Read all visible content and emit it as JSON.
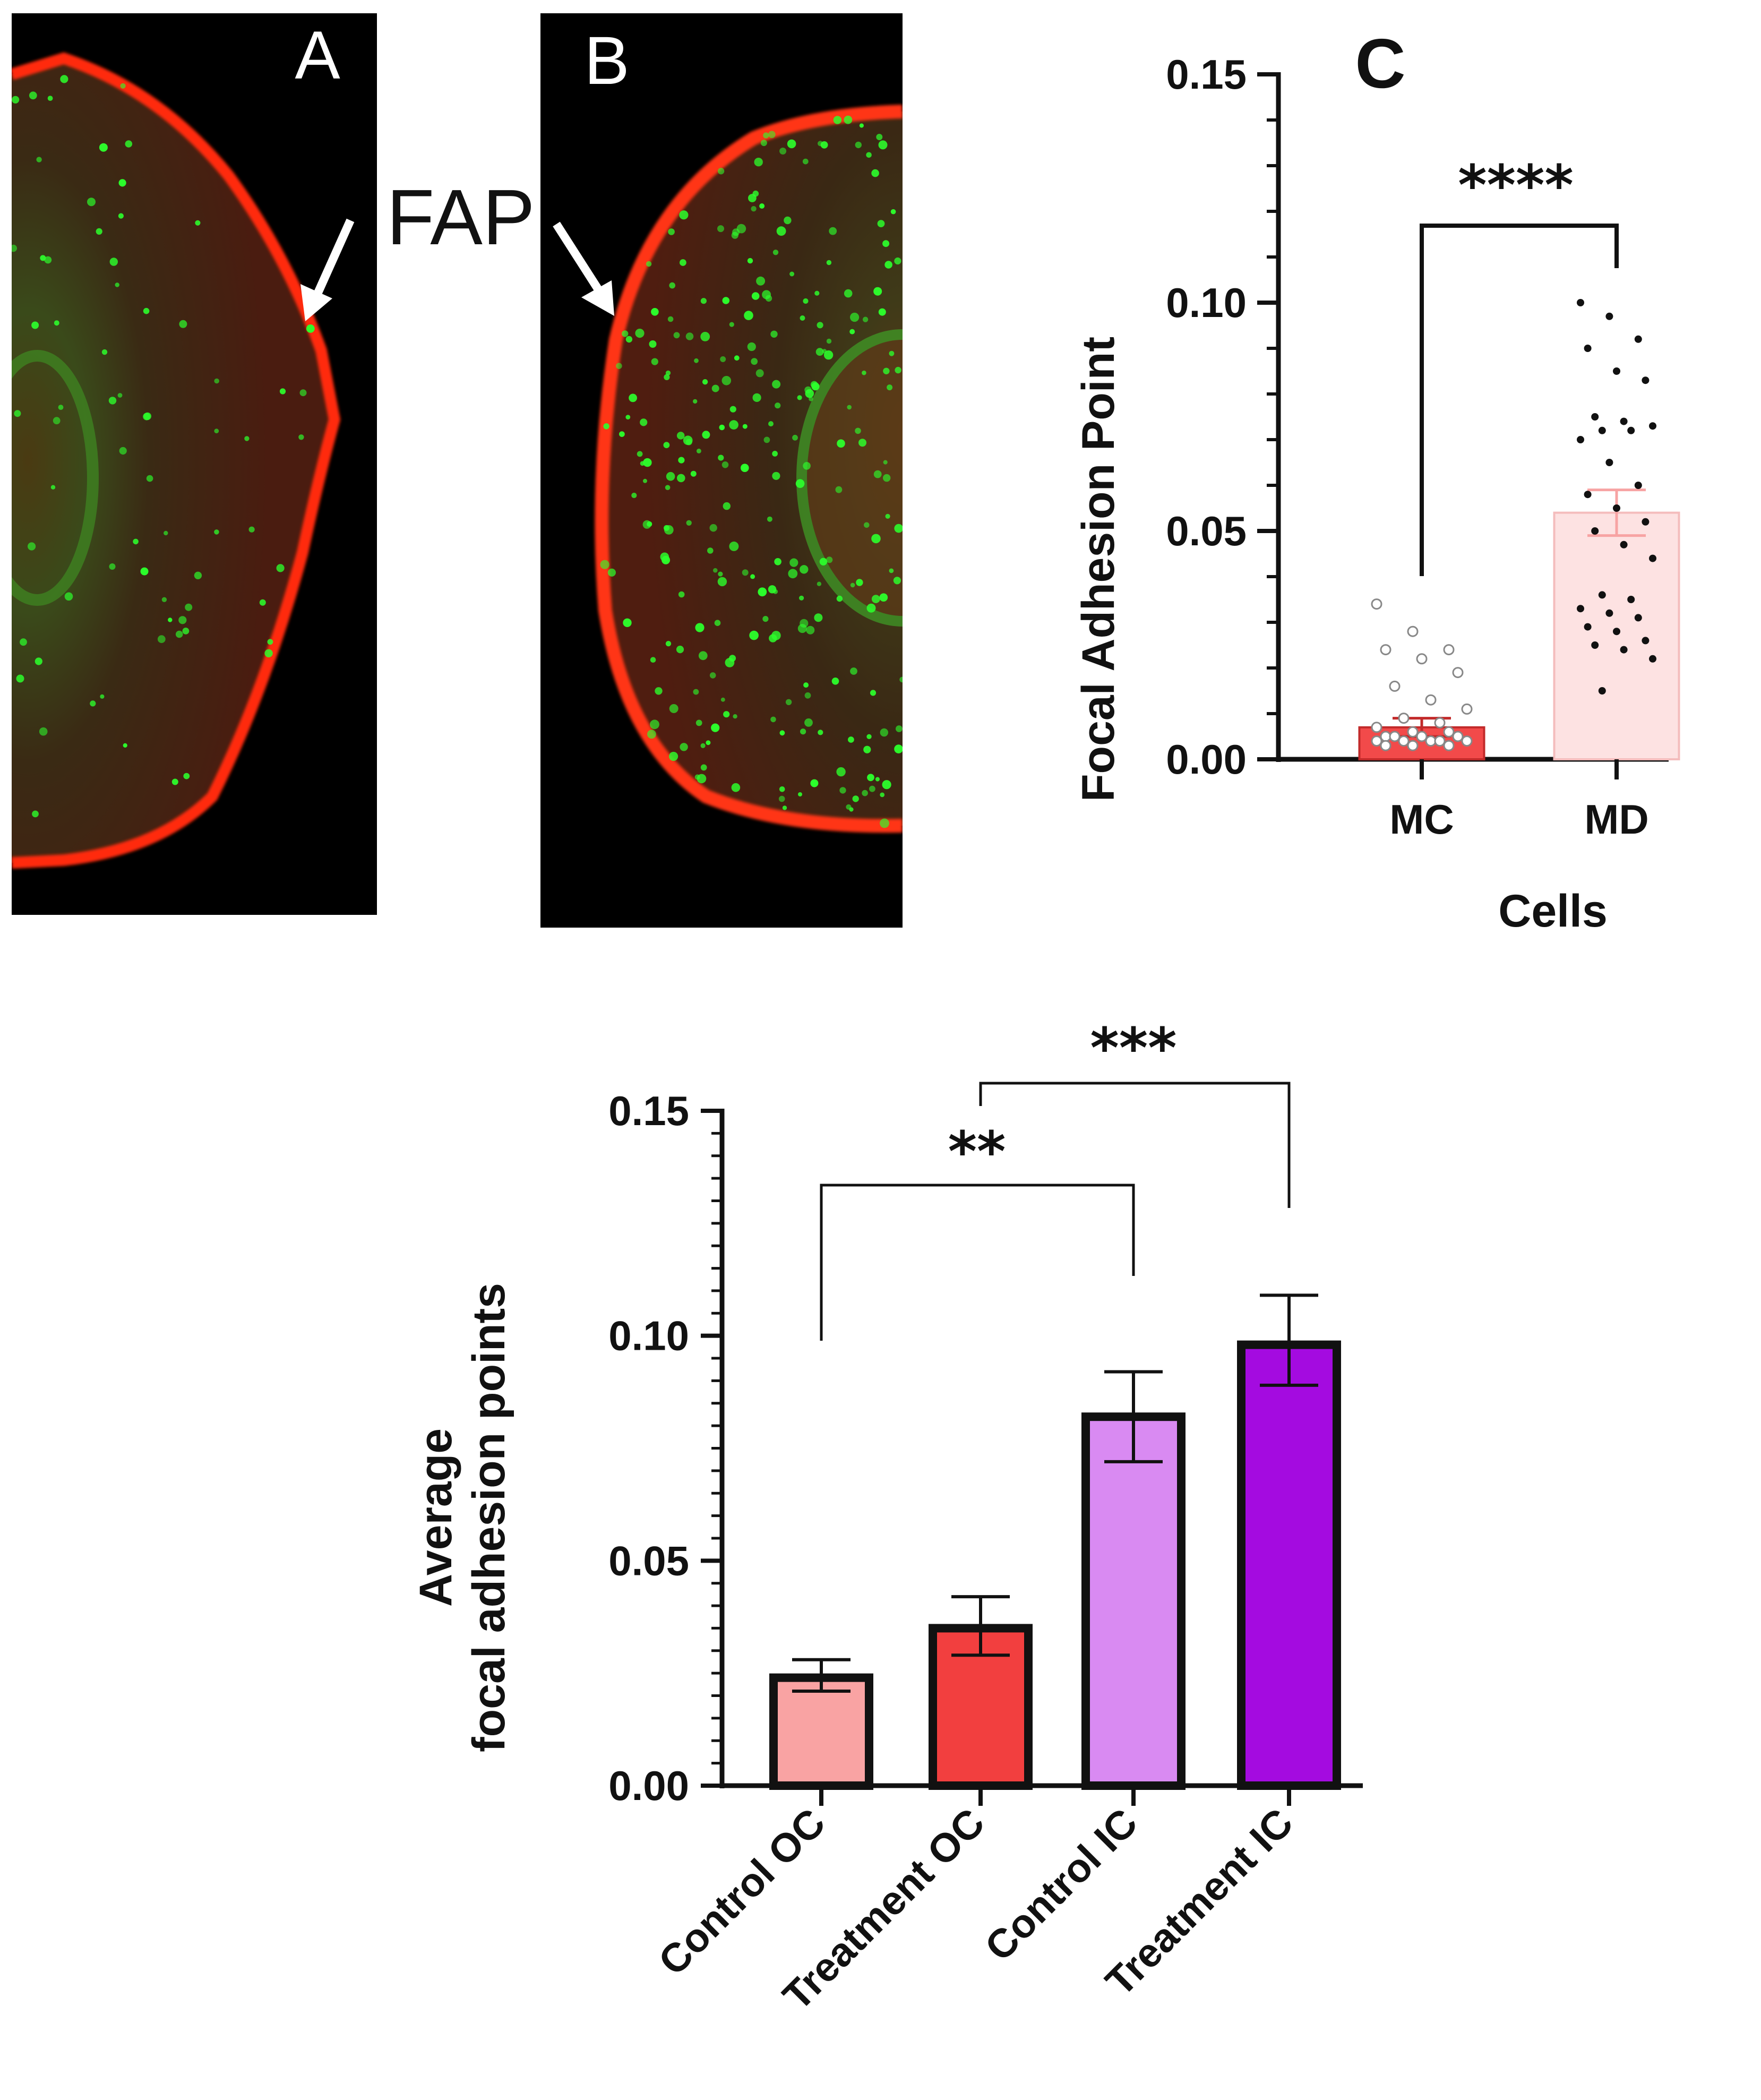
{
  "micrographs": [
    {
      "label": "A"
    },
    {
      "label": "B"
    }
  ],
  "fap_label": "FAP",
  "colors": {
    "membrane_red": "#ff2a10",
    "adhesion_green": "#2cff2c",
    "background_black": "#000000",
    "mc_bar": "#f24a4a",
    "md_bar": "#fde2e2",
    "md_error": "#f7a3a3"
  },
  "chart_data": [
    {
      "type": "bar",
      "panel_label": "C",
      "categories": [
        "MC",
        "MD"
      ],
      "values": [
        0.007,
        0.054
      ],
      "error": [
        0.002,
        0.005
      ],
      "points": {
        "MC": [
          0.034,
          0.028,
          0.024,
          0.024,
          0.022,
          0.019,
          0.016,
          0.013,
          0.011,
          0.009,
          0.008,
          0.007,
          0.006,
          0.006,
          0.005,
          0.005,
          0.005,
          0.005,
          0.004,
          0.004,
          0.004,
          0.004,
          0.004,
          0.003,
          0.003,
          0.003
        ],
        "MD": [
          0.1,
          0.097,
          0.092,
          0.09,
          0.085,
          0.083,
          0.075,
          0.074,
          0.073,
          0.072,
          0.072,
          0.07,
          0.065,
          0.06,
          0.058,
          0.055,
          0.052,
          0.05,
          0.047,
          0.044,
          0.036,
          0.035,
          0.033,
          0.032,
          0.031,
          0.029,
          0.028,
          0.026,
          0.025,
          0.024,
          0.022,
          0.015
        ]
      },
      "significance": "****",
      "xlabel": "Cells",
      "ylabel": "Focal Adhesion Point",
      "ylim": [
        0,
        0.15
      ],
      "yticks": [
        "0.00",
        "0.05",
        "0.10",
        "0.15"
      ]
    },
    {
      "type": "bar",
      "categories": [
        "Control OC",
        "Treatment OC",
        "Control IC",
        "Treatment IC"
      ],
      "values": [
        0.024,
        0.035,
        0.082,
        0.098
      ],
      "error_low": [
        0.021,
        0.029,
        0.072,
        0.089
      ],
      "error_high": [
        0.028,
        0.042,
        0.092,
        0.109
      ],
      "colors": [
        "#f9a3a3",
        "#f23f3f",
        "#d98af2",
        "#a40be0"
      ],
      "significance": [
        {
          "from": "Control OC",
          "to": "Control IC",
          "label": "**"
        },
        {
          "from": "Treatment OC",
          "to": "Treatment IC",
          "label": "***"
        }
      ],
      "ylabel_lines": [
        "Average",
        "focal adhesion points"
      ],
      "xlabel": "",
      "ylim": [
        0,
        0.15
      ],
      "yticks": [
        "0.00",
        "0.05",
        "0.10",
        "0.15"
      ]
    }
  ]
}
